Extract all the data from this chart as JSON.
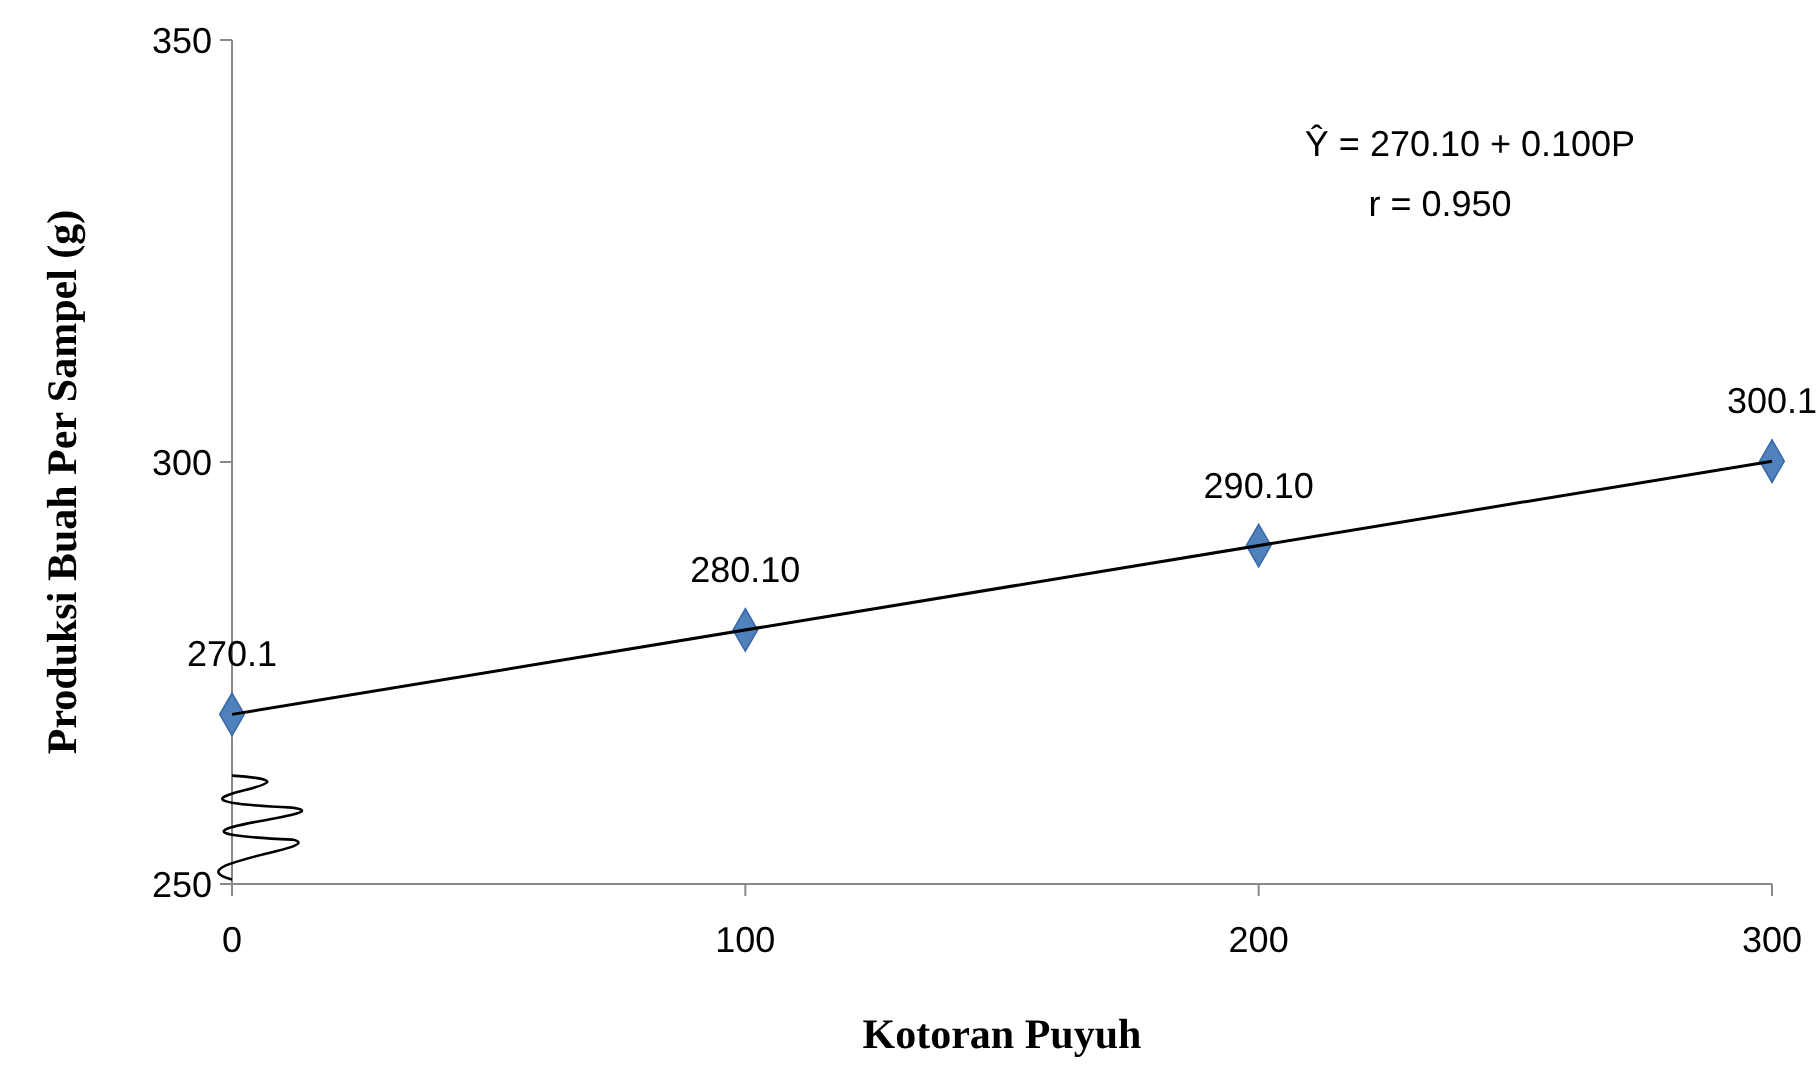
{
  "chart_data": {
    "type": "scatter",
    "xlabel": "Kotoran Puyuh",
    "ylabel": "Produksi Buah Per Sampel (g)",
    "x": [
      0,
      100,
      200,
      300
    ],
    "series": [
      {
        "color": "#4f81bd",
        "marker": "diamond",
        "values": [
          270.1,
          280.1,
          290.1,
          300.1
        ],
        "value_labels": [
          "270.1",
          "280.10",
          "290.10",
          "300.1"
        ]
      },
      {
        "type": "line",
        "color": "#000000",
        "x": [
          0,
          300
        ],
        "values": [
          270.1,
          300.1
        ],
        "marker": "none"
      }
    ],
    "xlim": [
      0,
      300
    ],
    "xticks": [
      0,
      100,
      200,
      300
    ],
    "ylim": [
      250,
      350
    ],
    "yticks": [
      250,
      300,
      350
    ],
    "annotations": [
      "Ŷ = 270.10 + 0.100P",
      "r = 0.950"
    ]
  }
}
